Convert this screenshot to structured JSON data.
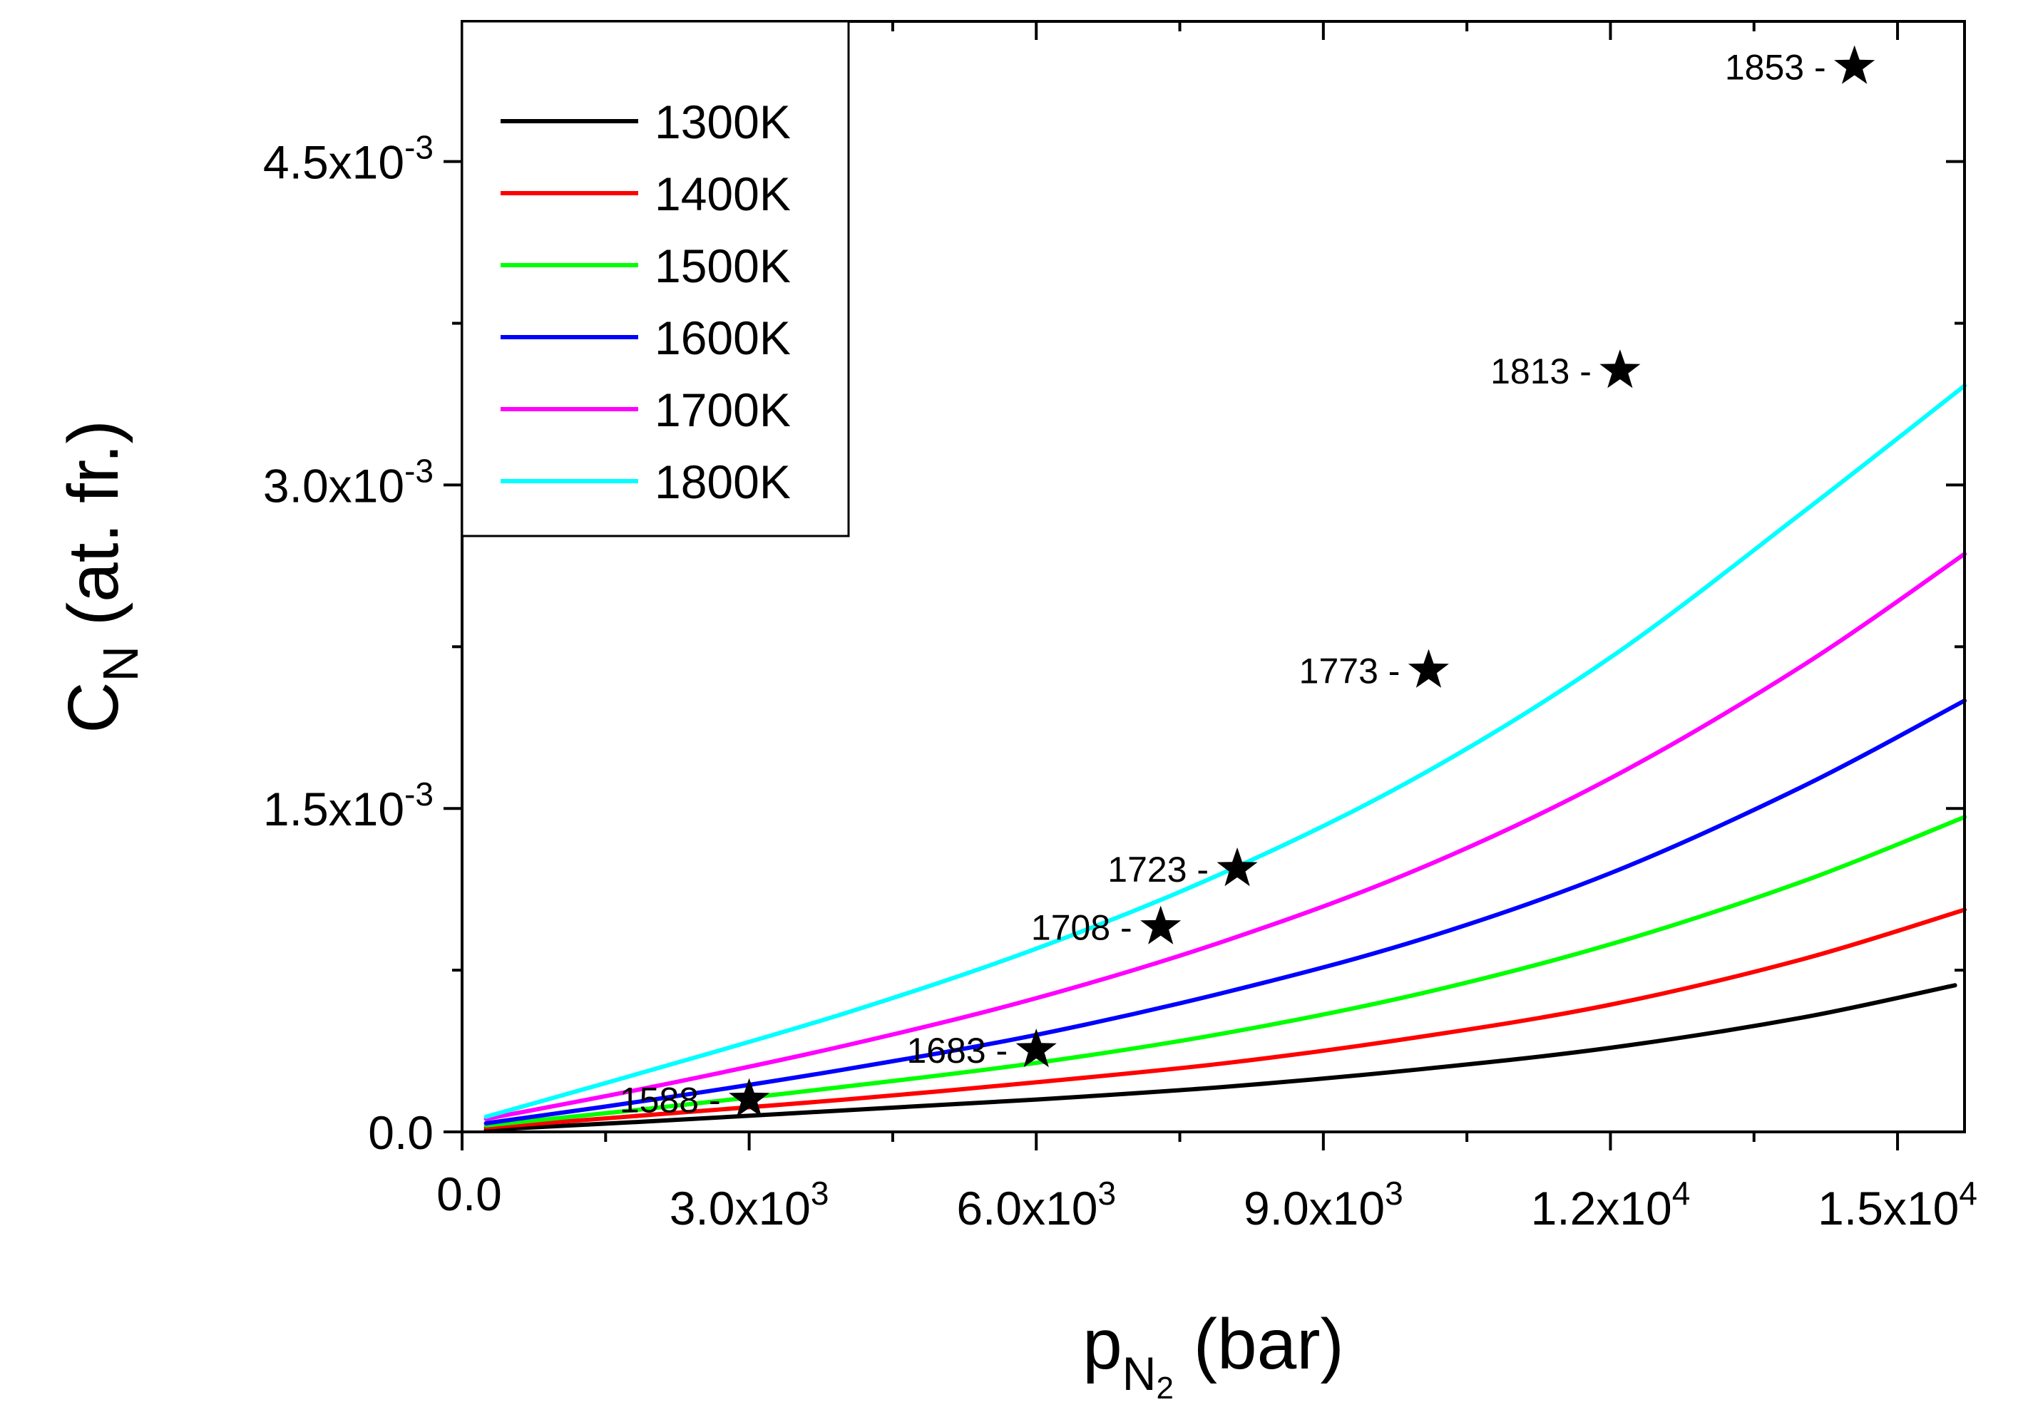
{
  "chart_data": {
    "type": "line",
    "title": "",
    "xlabel": {
      "main": "p",
      "sub": "N",
      "subsub": "2",
      "unit": " (bar)"
    },
    "ylabel": {
      "main": "C",
      "sub": "N",
      "unit": " (at. fr.)"
    },
    "xlim": [
      0,
      15700
    ],
    "ylim": [
      0,
      0.00515
    ],
    "x_ticks": [
      {
        "value": 0,
        "label": "0.0"
      },
      {
        "value": 3000,
        "mant": "3.0x10",
        "exp": "3"
      },
      {
        "value": 6000,
        "mant": "6.0x10",
        "exp": "3"
      },
      {
        "value": 9000,
        "mant": "9.0x10",
        "exp": "3"
      },
      {
        "value": 12000,
        "mant": "1.2x10",
        "exp": "4"
      },
      {
        "value": 15000,
        "mant": "1.5x10",
        "exp": "4"
      }
    ],
    "x_minor_ticks": [
      1500,
      4500,
      7500,
      10500,
      13500
    ],
    "y_ticks": [
      {
        "value": 0,
        "label": "0.0"
      },
      {
        "value": 0.0015,
        "mant": "1.5x10",
        "exp": "-3"
      },
      {
        "value": 0.003,
        "mant": "3.0x10",
        "exp": "-3"
      },
      {
        "value": 0.0045,
        "mant": "4.5x10",
        "exp": "-3"
      }
    ],
    "y_minor_ticks": [
      0.00075,
      0.00225,
      0.00375
    ],
    "legend_position": "top-left",
    "series": [
      {
        "name": "1300K",
        "color": "#000000",
        "x": [
          250,
          2000,
          4000,
          6000,
          8000,
          10000,
          12000,
          14000,
          15600
        ],
        "y": [
          1e-05,
          5e-05,
          0.0001,
          0.00015,
          0.00021,
          0.00029,
          0.00039,
          0.00053,
          0.00068
        ]
      },
      {
        "name": "1400K",
        "color": "#ff0000",
        "x": [
          250,
          2000,
          4000,
          6000,
          8000,
          10000,
          12000,
          14000,
          15700
        ],
        "y": [
          2e-05,
          8e-05,
          0.00015,
          0.00023,
          0.00032,
          0.00044,
          0.00059,
          0.0008,
          0.00103
        ]
      },
      {
        "name": "1500K",
        "color": "#00ff00",
        "x": [
          250,
          2000,
          4000,
          6000,
          8000,
          10000,
          12000,
          14000,
          15700
        ],
        "y": [
          3e-05,
          0.00011,
          0.00021,
          0.00032,
          0.00046,
          0.00064,
          0.00087,
          0.00116,
          0.00146
        ]
      },
      {
        "name": "1600K",
        "color": "#0000ff",
        "x": [
          250,
          2000,
          4000,
          6000,
          8000,
          10000,
          12000,
          14000,
          15700
        ],
        "y": [
          4e-05,
          0.00015,
          0.00029,
          0.00045,
          0.00065,
          0.00089,
          0.0012,
          0.0016,
          0.002
        ]
      },
      {
        "name": "1700K",
        "color": "#ff00ff",
        "x": [
          250,
          2000,
          4000,
          6000,
          8000,
          10000,
          12000,
          14000,
          15700
        ],
        "y": [
          6e-05,
          0.00021,
          0.0004,
          0.00062,
          0.00089,
          0.00122,
          0.00164,
          0.00216,
          0.00268
        ]
      },
      {
        "name": "1800K",
        "color": "#00ffff",
        "x": [
          250,
          2000,
          4000,
          6000,
          8000,
          10000,
          12000,
          14000,
          15700
        ],
        "y": [
          7e-05,
          0.00029,
          0.00055,
          0.00085,
          0.00121,
          0.00165,
          0.0022,
          0.00287,
          0.00346
        ]
      }
    ],
    "markers": [
      {
        "label": "1588 -",
        "x": 3000,
        "y": 0.00015
      },
      {
        "label": "1683 -",
        "x": 6000,
        "y": 0.00038
      },
      {
        "label": "1708 -",
        "x": 7300,
        "y": 0.00095
      },
      {
        "label": "1723 -",
        "x": 8100,
        "y": 0.00122
      },
      {
        "label": "1773 -",
        "x": 10100,
        "y": 0.00214
      },
      {
        "label": "1813 -",
        "x": 12100,
        "y": 0.00353
      },
      {
        "label": "1853 -",
        "x": 14550,
        "y": 0.00494
      }
    ]
  }
}
